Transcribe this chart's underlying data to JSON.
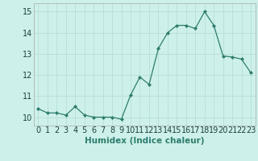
{
  "x": [
    0,
    1,
    2,
    3,
    4,
    5,
    6,
    7,
    8,
    9,
    10,
    11,
    12,
    13,
    14,
    15,
    16,
    17,
    18,
    19,
    20,
    21,
    22,
    23
  ],
  "y": [
    10.4,
    10.2,
    10.2,
    10.1,
    10.5,
    10.1,
    10.0,
    10.0,
    10.0,
    9.9,
    11.05,
    11.9,
    11.55,
    13.25,
    14.0,
    14.35,
    14.35,
    14.2,
    15.0,
    14.35,
    12.9,
    12.85,
    12.75,
    12.1
  ],
  "line_color": "#2e7d6e",
  "marker": "D",
  "marker_size": 2.0,
  "bg_color": "#cdf0ea",
  "grid_color": "#b8ddd8",
  "xlabel": "Humidex (Indice chaleur)",
  "ylabel_ticks": [
    10,
    11,
    12,
    13,
    14,
    15
  ],
  "xlim": [
    -0.5,
    23.5
  ],
  "ylim": [
    9.6,
    15.4
  ],
  "xlabel_fontsize": 7.5,
  "tick_fontsize": 7
}
